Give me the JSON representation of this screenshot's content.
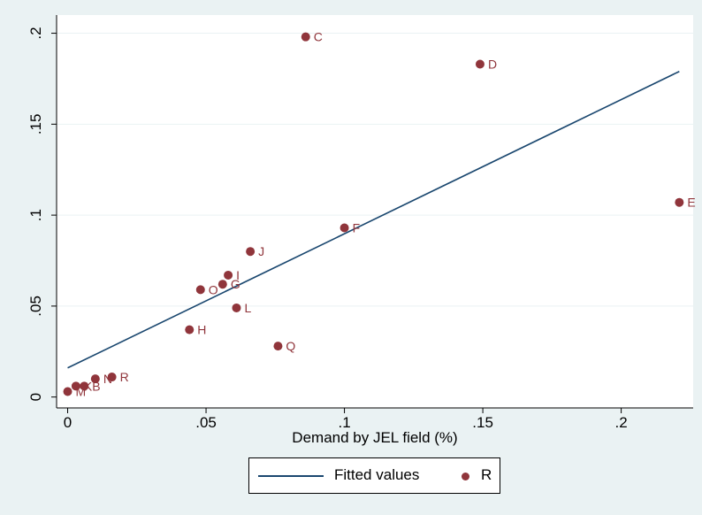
{
  "chart_data": {
    "type": "scatter",
    "xlabel": "Demand by JEL field (%)",
    "ylabel": "",
    "xlim": [
      -0.004,
      0.226
    ],
    "ylim": [
      -0.006,
      0.21
    ],
    "xticks": [
      0,
      0.05,
      0.1,
      0.15,
      0.2
    ],
    "xtick_labels": [
      "0",
      ".05",
      ".1",
      ".15",
      ".2"
    ],
    "yticks": [
      0,
      0.05,
      0.1,
      0.15,
      0.2
    ],
    "ytick_labels": [
      "0",
      ".05",
      ".1",
      ".15",
      ".2"
    ],
    "grid": "horizontal",
    "legend_position": "bottom",
    "series": [
      {
        "name": "R",
        "kind": "scatter",
        "color": "#90353b",
        "points": [
          {
            "label": "C",
            "x": 0.086,
            "y": 0.198
          },
          {
            "label": "D",
            "x": 0.149,
            "y": 0.183
          },
          {
            "label": "E",
            "x": 0.221,
            "y": 0.107
          },
          {
            "label": "F",
            "x": 0.1,
            "y": 0.093
          },
          {
            "label": "J",
            "x": 0.066,
            "y": 0.08
          },
          {
            "label": "I",
            "x": 0.058,
            "y": 0.067
          },
          {
            "label": "G",
            "x": 0.056,
            "y": 0.062
          },
          {
            "label": "O",
            "x": 0.048,
            "y": 0.059
          },
          {
            "label": "L",
            "x": 0.061,
            "y": 0.049
          },
          {
            "label": "H",
            "x": 0.044,
            "y": 0.037
          },
          {
            "label": "Q",
            "x": 0.076,
            "y": 0.028
          },
          {
            "label": "R",
            "x": 0.016,
            "y": 0.011
          },
          {
            "label": "N",
            "x": 0.01,
            "y": 0.01
          },
          {
            "label": "B",
            "x": 0.006,
            "y": 0.006
          },
          {
            "label": "K",
            "x": 0.003,
            "y": 0.006
          },
          {
            "label": "M",
            "x": 0.0,
            "y": 0.003
          }
        ]
      },
      {
        "name": "Fitted values",
        "kind": "line",
        "color": "#1a476f",
        "x": [
          0.0,
          0.221
        ],
        "y": [
          0.016,
          0.179
        ]
      }
    ]
  },
  "legend": {
    "items": [
      {
        "label": "Fitted values",
        "symbol": "line",
        "color": "#1a476f"
      },
      {
        "label": "R",
        "symbol": "dot",
        "color": "#90353b"
      }
    ]
  },
  "colors": {
    "page_background": "#eaf2f3",
    "plot_background": "#ffffff",
    "grid": "#eaf2f3",
    "marker": "#90353b",
    "fit_line": "#1a476f"
  }
}
